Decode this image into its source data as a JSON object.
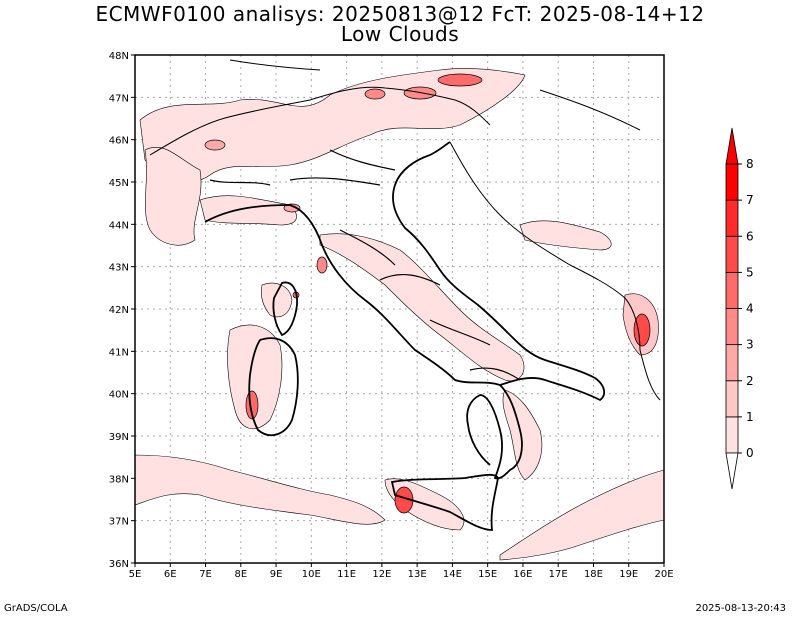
{
  "title": "ECMWF0100 analisys: 20250813@12 FcT: 2025-08-14+12",
  "subtitle": "Low Clouds",
  "footer_left": "GrADS/COLA",
  "footer_right": "2025-08-13-20:43",
  "map": {
    "lon_range": [
      5,
      20
    ],
    "lat_range": [
      36,
      48
    ],
    "lon_labels": [
      "5E",
      "6E",
      "7E",
      "8E",
      "9E",
      "10E",
      "11E",
      "12E",
      "13E",
      "14E",
      "15E",
      "16E",
      "17E",
      "18E",
      "19E",
      "20E"
    ],
    "lat_labels": [
      "36N",
      "37N",
      "38N",
      "39N",
      "40N",
      "41N",
      "42N",
      "43N",
      "44N",
      "45N",
      "46N",
      "47N",
      "48N"
    ],
    "grid": true,
    "colors": {
      "boundary": "#000000",
      "coast": "#000000",
      "grid": "#aaaaaa",
      "background": "#ffffff"
    }
  },
  "colorbar": {
    "levels": [
      "0",
      "1",
      "2",
      "3",
      "4",
      "5",
      "6",
      "7",
      "8"
    ],
    "colors": [
      "#ffffff",
      "#ffe1e1",
      "#ffc8c8",
      "#ffa8a8",
      "#ff8a8a",
      "#ff6a6a",
      "#ff4a4a",
      "#ff2a2a",
      "#ff0000"
    ]
  }
}
